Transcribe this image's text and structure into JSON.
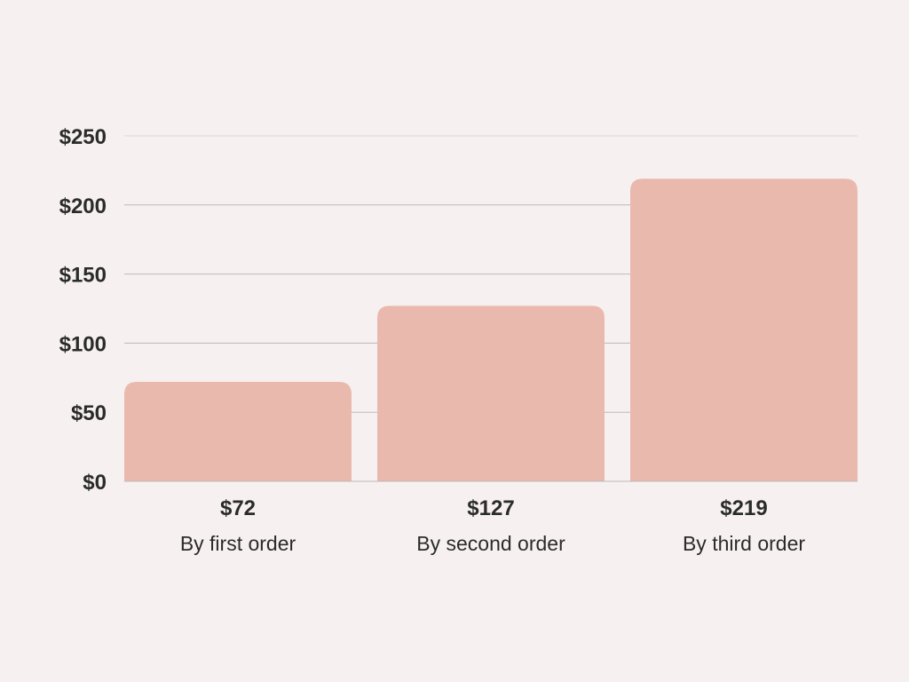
{
  "chart_data": {
    "type": "bar",
    "categories": [
      "By first order",
      "By second order",
      "By third order"
    ],
    "values": [
      72,
      127,
      219
    ],
    "value_labels": [
      "$72",
      "$127",
      "$219"
    ],
    "y_ticks": [
      "$0",
      "$50",
      "$100",
      "$150",
      "$200",
      "$250"
    ],
    "y_tick_values": [
      0,
      50,
      100,
      150,
      200,
      250
    ],
    "ylim": [
      0,
      250
    ],
    "grid": true,
    "legend": "none",
    "colors": {
      "background": "#f6f1f0",
      "bar": "#eab9ad",
      "grid": "#bdb8b7",
      "text": "#2b2b2b"
    }
  }
}
